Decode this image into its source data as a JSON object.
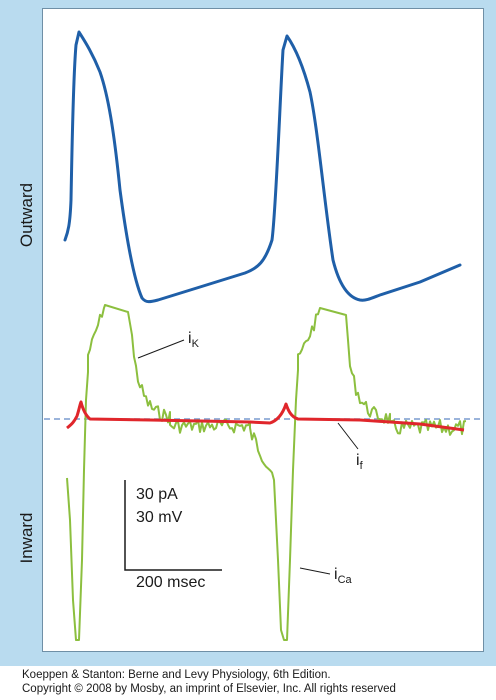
{
  "axis": {
    "outward": "Outward",
    "inward": "Inward"
  },
  "scale_bar": {
    "current": "30 pA",
    "voltage": "30 mV",
    "time": "200 msec"
  },
  "labels": {
    "ik_main": "i",
    "ik_sub": "K",
    "if_main": "i",
    "if_sub": "f",
    "ica_main": "i",
    "ica_sub": "Ca"
  },
  "colors": {
    "frame": "#b9dbef",
    "action_potential": "#1f5fa8",
    "ik_ica_trace": "#8cbf3f",
    "if_trace": "#e0262b",
    "baseline": "#7a9ccf"
  },
  "caption": {
    "line1": "Koeppen & Stanton: Berne and Levy Physiology, 6th Edition.",
    "line2": "Copyright © 2008 by Mosby, an imprint of Elsevier, Inc. All rights reserved"
  }
}
